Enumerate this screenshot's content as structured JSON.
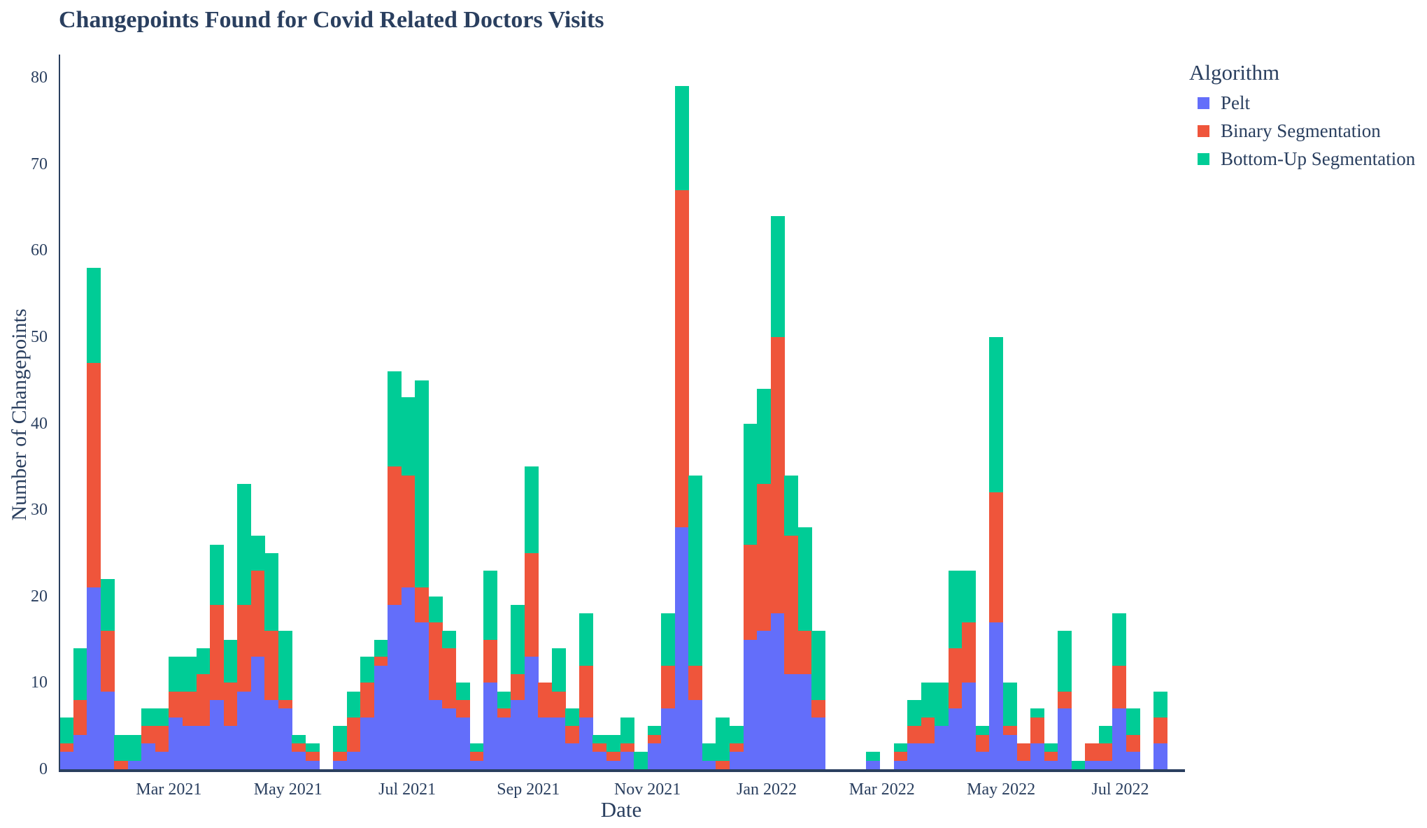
{
  "title": "Changepoints Found for Covid Related Doctors Visits",
  "x_axis": {
    "label": "Date",
    "ticks": [
      {
        "label": "Mar 2021",
        "week": 8.0
      },
      {
        "label": "May 2021",
        "week": 16.714
      },
      {
        "label": "Jul 2021",
        "week": 25.429
      },
      {
        "label": "Sep 2021",
        "week": 34.286
      },
      {
        "label": "Nov 2021",
        "week": 43.0
      },
      {
        "label": "Jan 2022",
        "week": 51.714
      },
      {
        "label": "Mar 2022",
        "week": 60.143
      },
      {
        "label": "May 2022",
        "week": 68.857
      },
      {
        "label": "Jul 2022",
        "week": 77.571
      }
    ]
  },
  "y_axis": {
    "label": "Number of Changepoints",
    "ticks": [
      0,
      10,
      20,
      30,
      40,
      50,
      60,
      70,
      80
    ],
    "max": 80
  },
  "legend": {
    "title": "Algorithm",
    "items": [
      {
        "label": "Pelt",
        "color": "#636EFA"
      },
      {
        "label": "Binary Segmentation",
        "color": "#EF553B"
      },
      {
        "label": "Bottom-Up Segmentation",
        "color": "#00CC96"
      }
    ]
  },
  "chart_data": {
    "type": "bar",
    "stacked": true,
    "x_unit": "week",
    "x_start": "2021-01-04",
    "n_bars": 81,
    "title": "Changepoints Found for Covid Related Doctors Visits",
    "xlabel": "Date",
    "ylabel": "Number of Changepoints",
    "ylim": [
      0,
      80
    ],
    "grid": false,
    "legend_position": "right",
    "series": [
      {
        "name": "Pelt",
        "color": "#636EFA",
        "values": [
          2,
          4,
          21,
          9,
          0,
          1,
          3,
          2,
          6,
          5,
          5,
          8,
          5,
          9,
          13,
          8,
          7,
          2,
          1,
          0,
          1,
          2,
          6,
          12,
          19,
          21,
          17,
          8,
          7,
          6,
          1,
          10,
          6,
          8,
          13,
          6,
          6,
          3,
          6,
          2,
          1,
          2,
          0,
          3,
          7,
          28,
          8,
          1,
          0,
          2,
          15,
          16,
          18,
          11,
          11,
          6,
          0,
          0,
          0,
          1,
          0,
          1,
          3,
          3,
          5,
          7,
          10,
          2,
          17,
          4,
          1,
          3,
          1,
          7,
          0,
          1,
          1,
          7,
          2,
          0,
          3
        ]
      },
      {
        "name": "Binary Segmentation",
        "color": "#EF553B",
        "values": [
          1,
          4,
          26,
          7,
          1,
          0,
          2,
          3,
          3,
          4,
          6,
          11,
          5,
          10,
          10,
          8,
          1,
          1,
          1,
          0,
          1,
          4,
          4,
          1,
          16,
          13,
          4,
          9,
          7,
          2,
          1,
          5,
          1,
          3,
          12,
          4,
          3,
          2,
          6,
          1,
          1,
          1,
          0,
          1,
          5,
          39,
          4,
          0,
          1,
          1,
          11,
          17,
          32,
          16,
          5,
          2,
          0,
          0,
          0,
          0,
          0,
          1,
          2,
          3,
          0,
          7,
          7,
          2,
          15,
          1,
          2,
          3,
          1,
          2,
          0,
          2,
          2,
          5,
          2,
          0,
          3
        ]
      },
      {
        "name": "Bottom-Up Segmentation",
        "color": "#00CC96",
        "values": [
          3,
          6,
          11,
          6,
          3,
          3,
          2,
          2,
          4,
          4,
          3,
          7,
          5,
          14,
          4,
          9,
          8,
          1,
          1,
          0,
          3,
          3,
          3,
          2,
          11,
          9,
          24,
          3,
          2,
          2,
          1,
          8,
          2,
          8,
          10,
          0,
          5,
          2,
          6,
          1,
          2,
          3,
          2,
          1,
          6,
          12,
          22,
          2,
          5,
          2,
          14,
          11,
          14,
          7,
          12,
          8,
          0,
          0,
          0,
          1,
          0,
          1,
          3,
          4,
          5,
          9,
          6,
          1,
          18,
          5,
          0,
          1,
          1,
          7,
          1,
          0,
          2,
          6,
          3,
          0,
          3
        ]
      }
    ]
  }
}
